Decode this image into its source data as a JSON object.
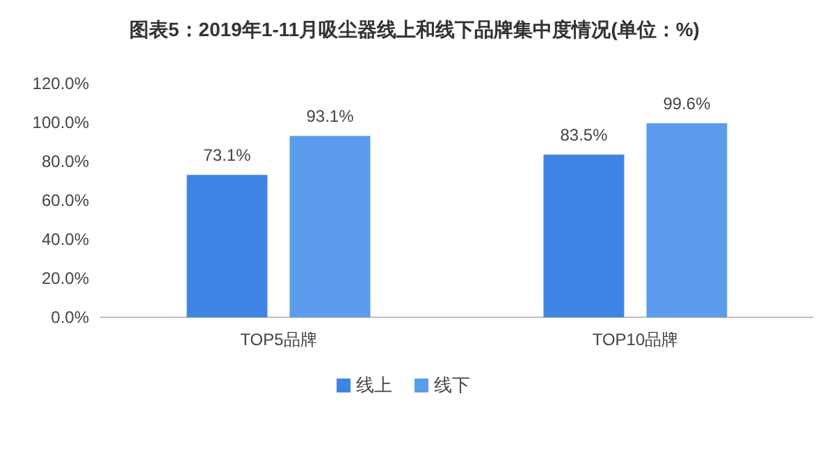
{
  "chart_data": {
    "type": "bar",
    "title": "图表5：2019年1-11月吸尘器线上和线下品牌集中度情况(单位：%)",
    "categories": [
      "TOP5品牌",
      "TOP10品牌"
    ],
    "series": [
      {
        "name": "线上",
        "color": "#3f84e5",
        "values": [
          73.1,
          83.5
        ],
        "value_labels": [
          "73.1%",
          "83.5%"
        ]
      },
      {
        "name": "线下",
        "color": "#5b9cec",
        "values": [
          93.1,
          99.6
        ],
        "value_labels": [
          "93.1%",
          "99.6%"
        ]
      }
    ],
    "ylim": [
      0,
      120
    ],
    "yticks": [
      {
        "value": 0,
        "label": "0.0%"
      },
      {
        "value": 20,
        "label": "20.0%"
      },
      {
        "value": 40,
        "label": "40.0%"
      },
      {
        "value": 60,
        "label": "60.0%"
      },
      {
        "value": 80,
        "label": "80.0%"
      },
      {
        "value": 100,
        "label": "100.0%"
      },
      {
        "value": 120,
        "label": "120.0%"
      }
    ],
    "legend": "bottom"
  }
}
